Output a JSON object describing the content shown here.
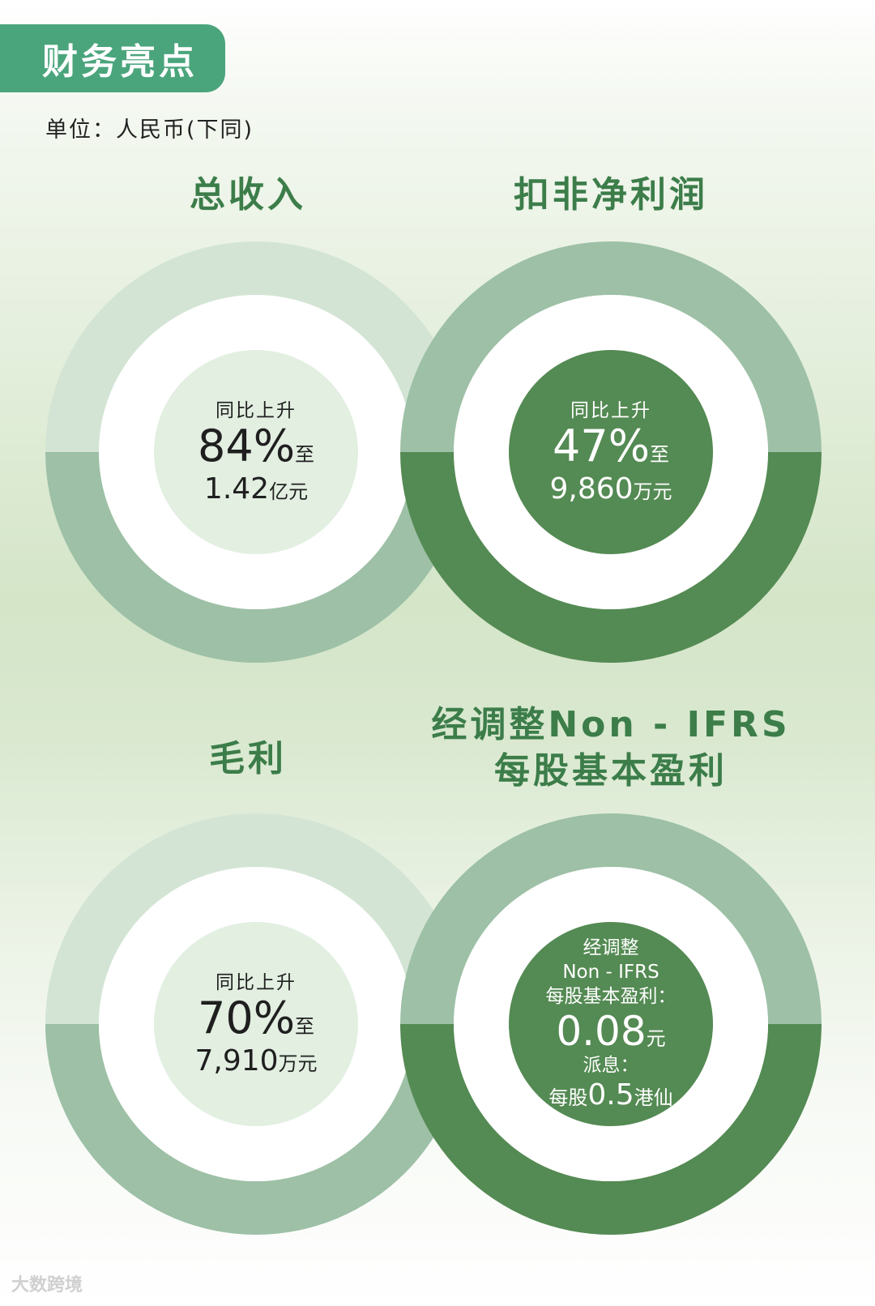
{
  "header": {
    "title": "财务亮点"
  },
  "unit_note": "单位：人民币(下同)",
  "colors": {
    "header_bg": "#4ba57c",
    "ring_light": "#d3e4d5",
    "ring_mid": "#9dc0a6",
    "ring_dark": "#548a53",
    "title_green": "#3c7d4a",
    "light_center": "#e2efe1"
  },
  "cards": {
    "revenue": {
      "title": "总收入",
      "label": "同比上升",
      "percent": "84%",
      "to": "至",
      "value": "1.42",
      "value_unit": "亿元"
    },
    "net_profit": {
      "title": "扣非净利润",
      "label": "同比上升",
      "percent": "47%",
      "to": "至",
      "value": "9,860",
      "value_unit": "万元"
    },
    "gross_profit": {
      "title": "毛利",
      "label": "同比上升",
      "percent": "70%",
      "to": "至",
      "value": "7,910",
      "value_unit": "万元"
    },
    "eps": {
      "title_line1": "经调整Non - IFRS",
      "title_line2": "每股基本盈利",
      "label_line1": "经调整",
      "label_line2": "Non - IFRS",
      "label_line3": "每股基本盈利：",
      "value": "0.08",
      "value_unit": "元",
      "dividend_label": "派息：",
      "dividend_prefix": "每股",
      "dividend_value": "0.5",
      "dividend_unit": "港仙"
    }
  },
  "watermark": "大数跨境"
}
